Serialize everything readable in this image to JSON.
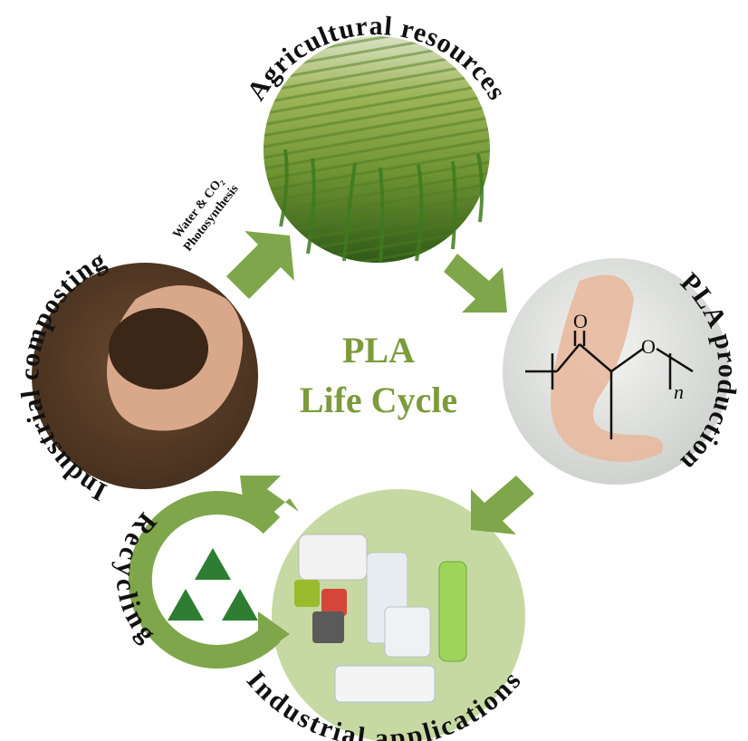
{
  "title": {
    "line1": "PLA",
    "line2": "Life Cycle"
  },
  "stages": [
    {
      "label": "Agricultural resources"
    },
    {
      "label": "PLA production"
    },
    {
      "label": "Industrial applications"
    },
    {
      "label": "Industrial composting"
    },
    {
      "label": "Recycling"
    }
  ],
  "annotation": {
    "line1": "Water & CO₂",
    "line2": "Photosynthesis"
  },
  "chemistry": {
    "carbonyl_oxygen": "O",
    "ester_oxygen": "O",
    "repeat": "n"
  }
}
